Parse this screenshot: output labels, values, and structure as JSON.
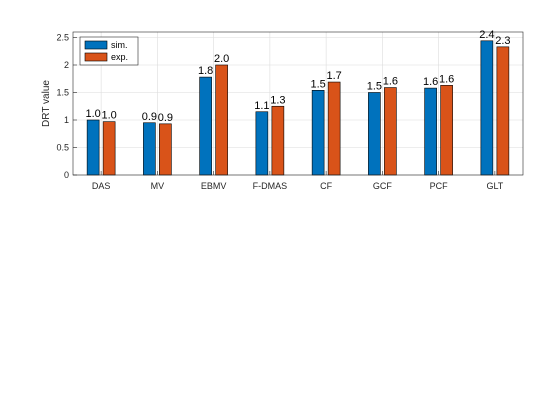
{
  "chart_data": {
    "type": "bar",
    "title": "",
    "xlabel": "",
    "ylabel": "DRT value",
    "categories": [
      "DAS",
      "MV",
      "EBMV",
      "F-DMAS",
      "CF",
      "GCF",
      "PCF",
      "GLT"
    ],
    "series": [
      {
        "name": "sim.",
        "color": "#0072BD",
        "values": [
          1.0,
          0.95,
          1.78,
          1.15,
          1.54,
          1.5,
          1.58,
          2.44
        ],
        "labels": [
          "1.0",
          "0.9",
          "1.8",
          "1.1",
          "1.5",
          "1.5",
          "1.6",
          "2.4"
        ]
      },
      {
        "name": "exp.",
        "color": "#D95319",
        "values": [
          0.97,
          0.93,
          2.0,
          1.25,
          1.69,
          1.59,
          1.63,
          2.33
        ],
        "labels": [
          "1.0",
          "0.9",
          "2.0",
          "1.3",
          "1.7",
          "1.6",
          "1.6",
          "2.3"
        ]
      }
    ],
    "ylim": [
      0,
      2.6
    ],
    "yticks": [
      0,
      0.5,
      1,
      1.5,
      2,
      2.5
    ],
    "ytick_labels": [
      "0",
      "0.5",
      "1",
      "1.5",
      "2",
      "2.5"
    ],
    "grid": true,
    "legend_position": "top-left"
  }
}
